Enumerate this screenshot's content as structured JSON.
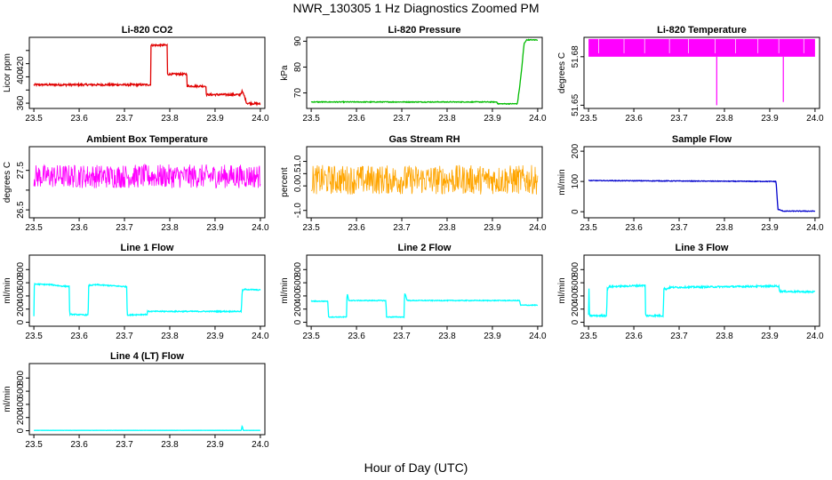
{
  "title": "NWR_130305  1 Hz Diagnostics Zoomed PM",
  "xlabel": "Hour of Day (UTC)",
  "chart_data": [
    {
      "type": "line",
      "title": "Li-820 CO2",
      "ylabel": "Licor ppm",
      "color": "#e00000",
      "xlim": [
        23.49,
        24.01
      ],
      "ylim": [
        352,
        460
      ],
      "x_ticks": [
        "23.5",
        "23.6",
        "23.7",
        "23.8",
        "23.9",
        "24.0"
      ],
      "y_ticks": [
        360,
        380,
        400,
        420,
        440
      ],
      "y_tick_labels": [
        "360",
        "",
        "400",
        "420",
        ""
      ],
      "noise": 1.5,
      "series": [
        {
          "name": "CO2",
          "x": [
            23.5,
            23.758,
            23.758,
            23.795,
            23.795,
            23.838,
            23.838,
            23.88,
            23.88,
            23.95,
            23.952,
            23.955,
            23.96,
            23.965,
            23.97,
            24.0
          ],
          "y": [
            388,
            388,
            448,
            448,
            404,
            404,
            386,
            386,
            373,
            373,
            372,
            373,
            378,
            370,
            360,
            359
          ]
        }
      ]
    },
    {
      "type": "line",
      "title": "Li-820 Pressure",
      "ylabel": "kPa",
      "color": "#00bb00",
      "xlim": [
        23.49,
        24.01
      ],
      "ylim": [
        64,
        91.5
      ],
      "x_ticks": [
        "23.5",
        "23.6",
        "23.7",
        "23.8",
        "23.9",
        "24.0"
      ],
      "y_ticks": [
        70,
        80,
        90
      ],
      "y_tick_labels": [
        "70",
        "80",
        "90"
      ],
      "noise": 0.15,
      "series": [
        {
          "name": "Pressure",
          "x": [
            23.5,
            23.91,
            23.912,
            23.955,
            23.96,
            23.965,
            23.97,
            23.975,
            24.0
          ],
          "y": [
            66.5,
            66.5,
            65.8,
            65.8,
            72,
            80,
            89,
            90.5,
            90.5
          ]
        }
      ]
    },
    {
      "type": "line",
      "title": "Li-820 Temperature",
      "ylabel": "degrees C",
      "color": "#ff00ff",
      "xlim": [
        23.49,
        24.01
      ],
      "ylim": [
        51.648,
        51.692
      ],
      "x_ticks": [
        "23.5",
        "23.6",
        "23.7",
        "23.8",
        "23.9",
        "24.0"
      ],
      "y_ticks": [
        51.65,
        51.68
      ],
      "y_tick_labels": [
        "51.65",
        "51.68"
      ],
      "band": [
        51.68,
        51.691
      ],
      "spikes": [
        [
          23.783,
          51.65
        ],
        [
          23.93,
          51.652
        ]
      ],
      "series": []
    },
    {
      "type": "line",
      "title": "Ambient Box Temperature",
      "ylabel": "degrees C",
      "color": "#ff00ff",
      "xlim": [
        23.49,
        24.01
      ],
      "ylim": [
        26.3,
        28.1
      ],
      "x_ticks": [
        "23.5",
        "23.6",
        "23.7",
        "23.8",
        "23.9",
        "24.0"
      ],
      "y_ticks": [
        26.5,
        27.0,
        27.5
      ],
      "y_tick_labels": [
        "26.5",
        "",
        "27.5"
      ],
      "noise": 0.3,
      "series": [
        {
          "name": "Box Temp",
          "x": [
            23.5,
            24.0
          ],
          "y": [
            27.35,
            27.35
          ]
        }
      ]
    },
    {
      "type": "line",
      "title": "Gas Stream RH",
      "ylabel": "percent",
      "color": "#ffa500",
      "xlim": [
        23.49,
        24.01
      ],
      "ylim": [
        -1.3,
        1.6
      ],
      "x_ticks": [
        "23.5",
        "23.6",
        "23.7",
        "23.8",
        "23.9",
        "24.0"
      ],
      "y_ticks": [
        -1.0,
        0.0,
        0.5,
        1.0
      ],
      "y_tick_labels": [
        "-1.0",
        "0.0",
        "0.5",
        "1.0"
      ],
      "noise": 0.6,
      "series": [
        {
          "name": "RH",
          "x": [
            23.5,
            24.0
          ],
          "y": [
            0.25,
            0.25
          ]
        }
      ]
    },
    {
      "type": "line",
      "title": "Sample Flow",
      "ylabel": "ml/min",
      "color": "#0000cc",
      "xlim": [
        23.49,
        24.01
      ],
      "ylim": [
        -20,
        215
      ],
      "x_ticks": [
        "23.5",
        "23.6",
        "23.7",
        "23.8",
        "23.9",
        "24.0"
      ],
      "y_ticks": [
        0,
        100,
        200
      ],
      "y_tick_labels": [
        "0",
        "100",
        "200"
      ],
      "noise": 1,
      "series": [
        {
          "name": "Sample Flow",
          "x": [
            23.5,
            23.914,
            23.918,
            23.93,
            24.0
          ],
          "y": [
            103,
            100,
            8,
            2,
            2
          ]
        }
      ]
    },
    {
      "type": "line",
      "title": "Line 1 Flow",
      "ylabel": "ml/min",
      "color": "#00ffff",
      "xlim": [
        23.49,
        24.01
      ],
      "ylim": [
        -60,
        1020
      ],
      "x_ticks": [
        "23.5",
        "23.6",
        "23.7",
        "23.8",
        "23.9",
        "24.0"
      ],
      "y_ticks": [
        0,
        200,
        400,
        600,
        800
      ],
      "y_tick_labels": [
        "0",
        "200",
        "400",
        "600",
        "800"
      ],
      "noise": 8,
      "series": [
        {
          "name": "Line 1",
          "x": [
            23.5,
            23.501,
            23.502,
            23.54,
            23.56,
            23.578,
            23.579,
            23.62,
            23.621,
            23.64,
            23.705,
            23.706,
            23.75,
            23.751,
            23.958,
            23.96,
            23.965,
            24.0
          ],
          "y": [
            100,
            560,
            580,
            570,
            550,
            545,
            120,
            110,
            560,
            570,
            540,
            110,
            120,
            165,
            165,
            480,
            500,
            490
          ]
        }
      ]
    },
    {
      "type": "line",
      "title": "Line 2 Flow",
      "ylabel": "ml/min",
      "color": "#00ffff",
      "xlim": [
        23.49,
        24.01
      ],
      "ylim": [
        -60,
        1020
      ],
      "x_ticks": [
        "23.5",
        "23.6",
        "23.7",
        "23.8",
        "23.9",
        "24.0"
      ],
      "y_ticks": [
        0,
        200,
        400,
        600,
        800
      ],
      "y_tick_labels": [
        "0",
        "200",
        "400",
        "600",
        "800"
      ],
      "noise": 6,
      "series": [
        {
          "name": "Line 2",
          "x": [
            23.5,
            23.537,
            23.538,
            23.578,
            23.579,
            23.58,
            23.583,
            23.665,
            23.666,
            23.705,
            23.706,
            23.708,
            23.712,
            23.96,
            23.962,
            24.0
          ],
          "y": [
            320,
            320,
            80,
            80,
            420,
            420,
            330,
            330,
            80,
            80,
            440,
            420,
            330,
            330,
            260,
            260
          ]
        }
      ]
    },
    {
      "type": "line",
      "title": "Line 3 Flow",
      "ylabel": "ml/min",
      "color": "#00ffff",
      "xlim": [
        23.49,
        24.01
      ],
      "ylim": [
        -60,
        1020
      ],
      "x_ticks": [
        "23.5",
        "23.6",
        "23.7",
        "23.8",
        "23.9",
        "24.0"
      ],
      "y_ticks": [
        0,
        200,
        400,
        600,
        800
      ],
      "y_tick_labels": [
        "0",
        "200",
        "400",
        "600",
        "800"
      ],
      "noise": 12,
      "series": [
        {
          "name": "Line 3",
          "x": [
            23.5,
            23.501,
            23.502,
            23.54,
            23.541,
            23.545,
            23.625,
            23.626,
            23.665,
            23.666,
            23.67,
            23.68,
            23.92,
            23.922,
            24.0
          ],
          "y": [
            100,
            520,
            100,
            100,
            500,
            540,
            560,
            100,
            100,
            520,
            500,
            530,
            550,
            470,
            460
          ]
        }
      ]
    },
    {
      "type": "line",
      "title": "Line 4 (LT) Flow",
      "ylabel": "ml/min",
      "color": "#00ffff",
      "xlim": [
        23.49,
        24.01
      ],
      "ylim": [
        -60,
        1020
      ],
      "x_ticks": [
        "23.5",
        "23.6",
        "23.7",
        "23.8",
        "23.9",
        "24.0"
      ],
      "y_ticks": [
        0,
        200,
        400,
        600,
        800
      ],
      "y_tick_labels": [
        "0",
        "200",
        "400",
        "600",
        "800"
      ],
      "noise": 1,
      "series": [
        {
          "name": "Line 4",
          "x": [
            23.5,
            23.958,
            23.96,
            23.962,
            24.0
          ],
          "y": [
            5,
            5,
            80,
            5,
            5
          ]
        }
      ]
    }
  ]
}
